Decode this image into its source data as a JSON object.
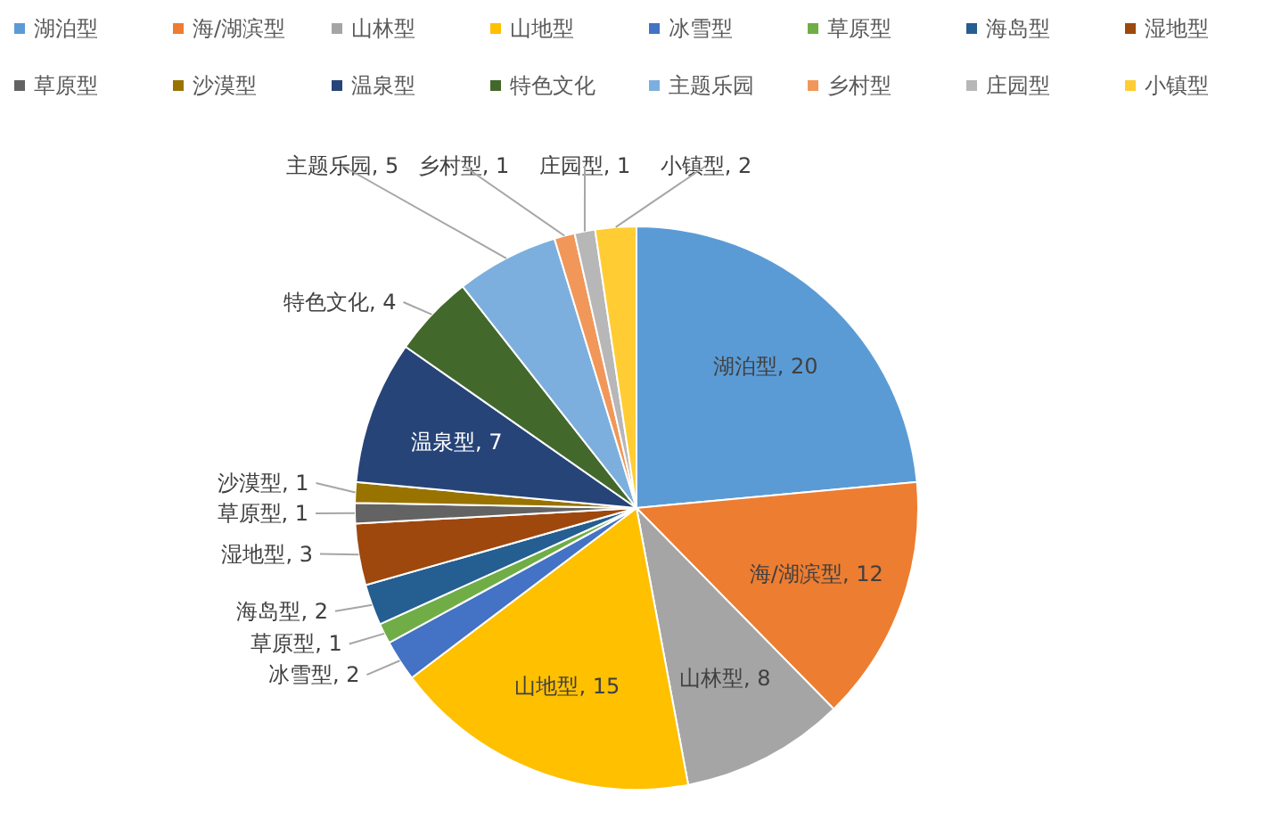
{
  "chart_data": {
    "type": "pie",
    "categories": [
      "湖泊型",
      "海/湖滨型",
      "山林型",
      "山地型",
      "冰雪型",
      "草原型",
      "海岛型",
      "湿地型",
      "草原型",
      "沙漠型",
      "温泉型",
      "特色文化",
      "主题乐园",
      "乡村型",
      "庄园型",
      "小镇型"
    ],
    "values": [
      20,
      12,
      8,
      15,
      2,
      1,
      2,
      3,
      1,
      1,
      7,
      4,
      5,
      1,
      1,
      2
    ],
    "value_labels": [
      "湖泊型, 20",
      "海/湖滨型, 12",
      "山林型, 8",
      "山地型, 15",
      "冰雪型, 2",
      "草原型, 1",
      "海岛型, 2",
      "湿地型, 3",
      "草原型, 1",
      "沙漠型, 1",
      "温泉型, 7",
      "特色文化, 4",
      "主题乐园, 5",
      "乡村型, 1",
      "庄园型, 1",
      "小镇型, 2"
    ],
    "colors": [
      "#5b9bd5",
      "#ed7d31",
      "#a5a5a5",
      "#ffc000",
      "#4472c4",
      "#70ad47",
      "#255e91",
      "#9e480e",
      "#636363",
      "#997300",
      "#264478",
      "#43682b",
      "#7cafdd",
      "#f1975a",
      "#b7b7b7",
      "#ffcd33"
    ],
    "legend": "top"
  }
}
